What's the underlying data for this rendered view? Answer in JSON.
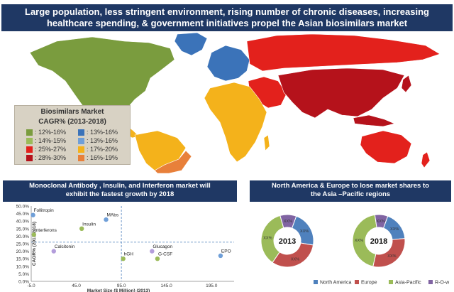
{
  "header": {
    "line1": "Large population, less stringent environment, rising number of chronic diseases, increasing",
    "line2": "healthcare spending, & government initiatives propel the Asian biosimilars market"
  },
  "legend": {
    "title_line1": "Biosimilars  Market",
    "title_line2": "CAGR% (2013-2018)",
    "items": [
      {
        "label": ": 12%-16%",
        "color": "#7a9c3e"
      },
      {
        "label": ": 13%-16%",
        "color": "#3b73b9"
      },
      {
        "label": ": 14%-15%",
        "color": "#9bbb59"
      },
      {
        "label": ": 13%-16%",
        "color": "#6f9fd8"
      },
      {
        "label": ": 25%-27%",
        "color": "#e3211c"
      },
      {
        "label": ": 17%-20%",
        "color": "#f4b21b"
      },
      {
        "label": ": 28%-30%",
        "color": "#b5121b"
      },
      {
        "label": ": 16%-19%",
        "color": "#e8803a"
      }
    ]
  },
  "map_colors": {
    "north_america": "#7a9c3e",
    "south_america_north": "#f4b21b",
    "south_america_south": "#e8803a",
    "europe_west": "#3b73b9",
    "russia": "#e3211c",
    "africa": "#f4b21b",
    "middle_east": "#e3211c",
    "asia": "#b5121b",
    "australia": "#e3211c",
    "greenland": "#3b73b9"
  },
  "left_panel": {
    "title_line1": "Monoclonal Antibody , Insulin, and Interferon market will",
    "title_line2": "exhibit the fastest growth by 2018"
  },
  "right_panel": {
    "title_line1": "North America & Europe to lose market shares to",
    "title_line2": "the Asia –Pacific regions"
  },
  "chart_data": [
    {
      "type": "scatter",
      "xlabel": "Market Size ($ Million) (2013)",
      "ylabel": "CAGR% (2013-2018)",
      "xlim": [
        -5,
        220
      ],
      "ylim": [
        0,
        50
      ],
      "x_ticks": [
        "-5.0",
        "45.0",
        "95.0",
        "145.0",
        "195.0"
      ],
      "x_tick_values": [
        -5,
        45,
        95,
        145,
        195
      ],
      "y_ticks": [
        "0.0%",
        "5.0%",
        "10.0%",
        "15.0%",
        "20.0%",
        "25.0%",
        "30.0%",
        "35.0%",
        "40.0%",
        "45.0%",
        "50.0%"
      ],
      "y_tick_values": [
        0,
        5,
        10,
        15,
        20,
        25,
        30,
        35,
        40,
        45,
        50
      ],
      "ref_x": 95,
      "ref_y": 26,
      "points": [
        {
          "label": "Follitropin",
          "x": -3,
          "y": 44,
          "color": "#6f9fd8"
        },
        {
          "label": "Interferons",
          "x": -2,
          "y": 31,
          "color": "#9bbb59"
        },
        {
          "label": "Insulin",
          "x": 51,
          "y": 35,
          "color": "#9bbb59"
        },
        {
          "label": "MAbs",
          "x": 78,
          "y": 41,
          "color": "#6f9fd8"
        },
        {
          "label": "Calcitonin",
          "x": 20,
          "y": 20,
          "color": "#b39ddb"
        },
        {
          "label": "hGH",
          "x": 97,
          "y": 15,
          "color": "#9bbb59"
        },
        {
          "label": "Glucagon",
          "x": 129,
          "y": 20,
          "color": "#b39ddb"
        },
        {
          "label": "G-CSF",
          "x": 135,
          "y": 15,
          "color": "#9bbb59"
        },
        {
          "label": "EPO",
          "x": 205,
          "y": 17,
          "color": "#6f9fd8"
        }
      ]
    },
    {
      "type": "pie",
      "title": "2013",
      "slice_label": "XX%",
      "series": [
        {
          "name": "North America",
          "values": [
            22
          ],
          "color": "#4f81bd"
        },
        {
          "name": "Europe",
          "values": [
            32
          ],
          "color": "#c0504d"
        },
        {
          "name": "Asia-Pacific",
          "values": [
            36
          ],
          "color": "#9bbb59"
        },
        {
          "name": "R-O-w",
          "values": [
            10
          ],
          "color": "#8064a2"
        }
      ]
    },
    {
      "type": "pie",
      "title": "2018",
      "slice_label": "XX%",
      "series": [
        {
          "name": "North America",
          "values": [
            18
          ],
          "color": "#4f81bd"
        },
        {
          "name": "Europe",
          "values": [
            30
          ],
          "color": "#c0504d"
        },
        {
          "name": "Asia-Pacific",
          "values": [
            44
          ],
          "color": "#9bbb59"
        },
        {
          "name": "R-O-w",
          "values": [
            8
          ],
          "color": "#8064a2"
        }
      ]
    }
  ],
  "donut_legend": [
    "North America",
    "Europe",
    "Asia-Pacific",
    "R-O-w"
  ]
}
